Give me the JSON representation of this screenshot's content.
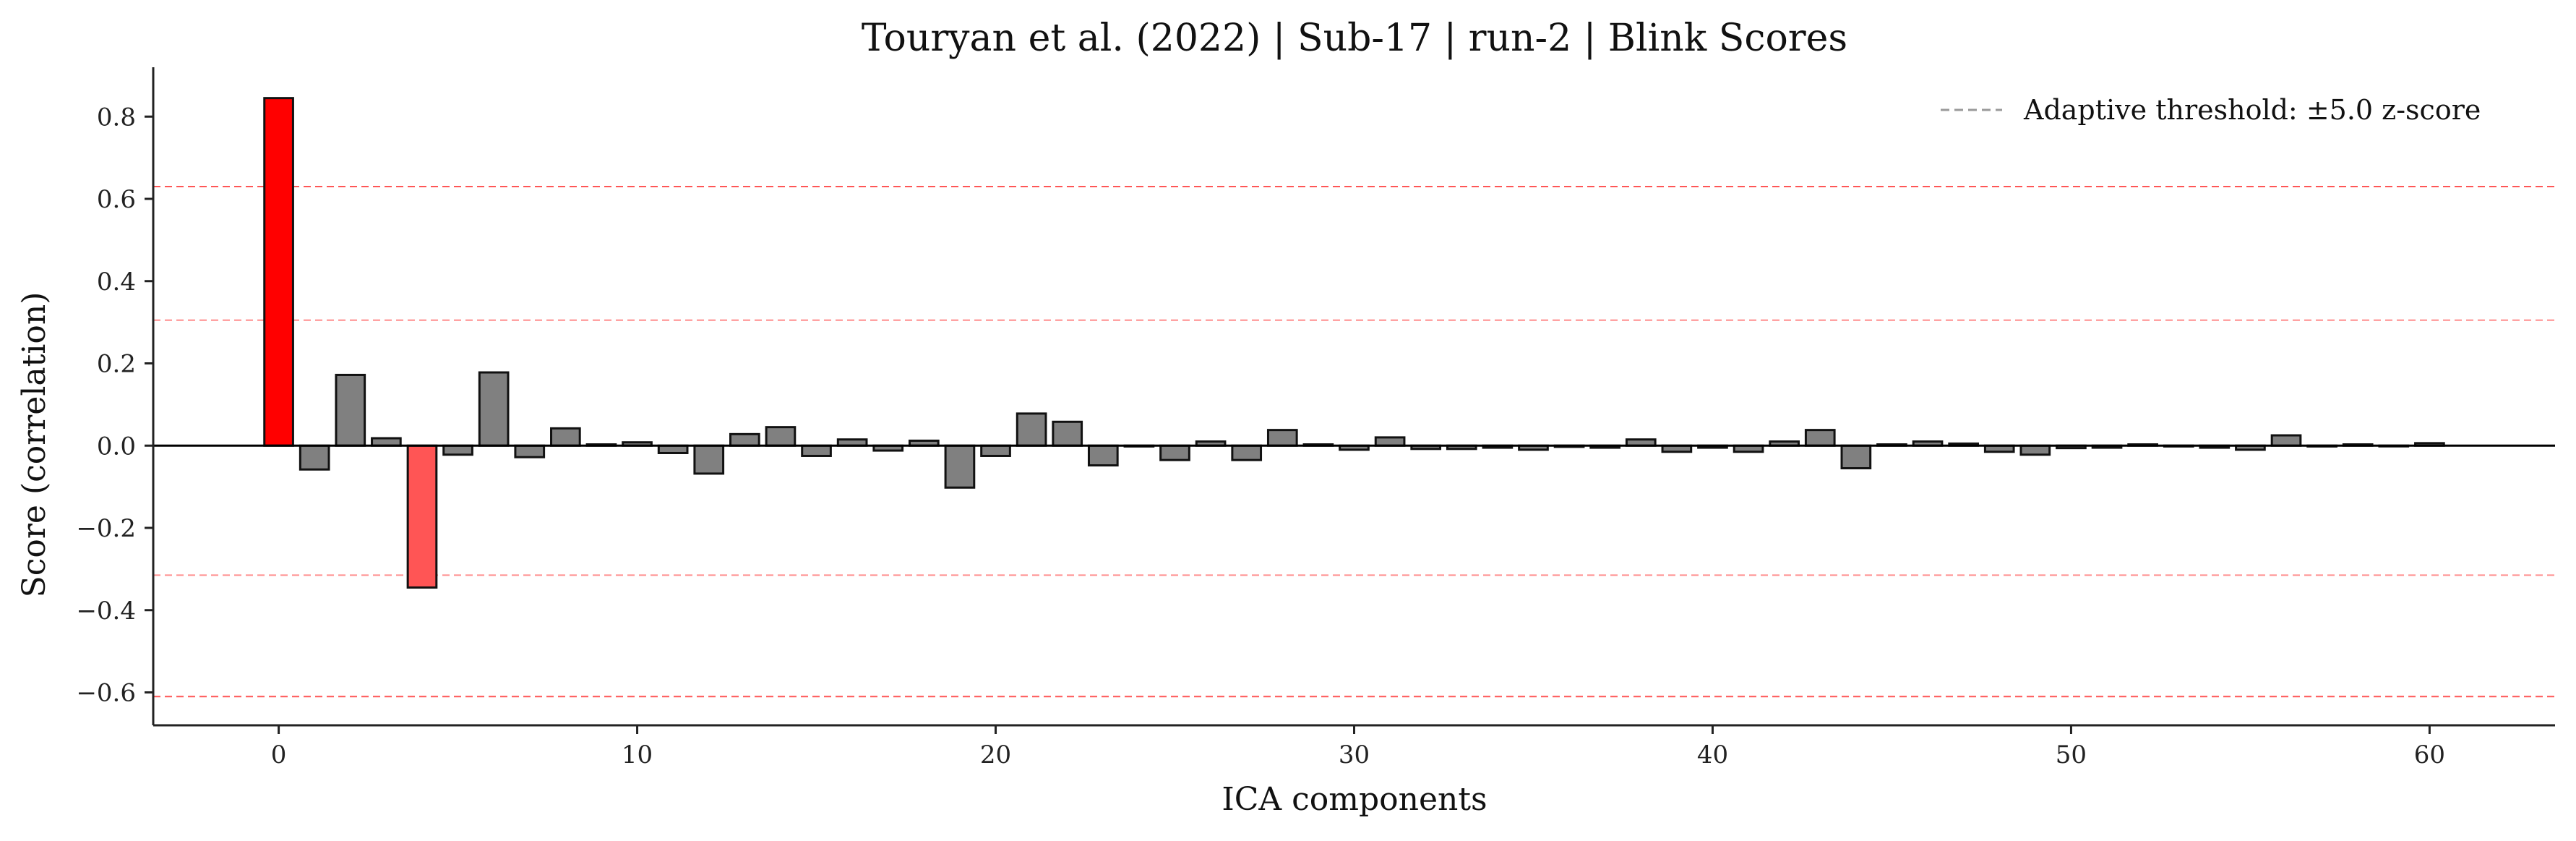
{
  "chart_data": {
    "type": "bar",
    "title": "Touryan et al. (2022) | Sub-17 | run-2 | Blink Scores",
    "xlabel": "ICA components",
    "ylabel": "Score (correlation)",
    "xlim": [
      -3.5,
      63.5
    ],
    "ylim": [
      -0.68,
      0.92
    ],
    "xticks": [
      0,
      10,
      20,
      30,
      40,
      50,
      60
    ],
    "yticks": [
      -0.6,
      -0.4,
      -0.2,
      0.0,
      0.2,
      0.4,
      0.6,
      0.8
    ],
    "xtick_labels": [
      "0",
      "10",
      "20",
      "30",
      "40",
      "50",
      "60"
    ],
    "ytick_labels": [
      "−0.6",
      "−0.4",
      "−0.2",
      "0.0",
      "0.2",
      "0.4",
      "0.6",
      "0.8"
    ],
    "grid": false,
    "legend": {
      "position": "top-right",
      "entries": [
        {
          "label": "Adaptive threshold: ±5.0 z-score",
          "style": "dashed",
          "color": "#999999"
        }
      ]
    },
    "threshold_lines": [
      0.63,
      0.305,
      -0.315,
      -0.61
    ],
    "x": [
      0,
      1,
      2,
      3,
      4,
      5,
      6,
      7,
      8,
      9,
      10,
      11,
      12,
      13,
      14,
      15,
      16,
      17,
      18,
      19,
      20,
      21,
      22,
      23,
      24,
      25,
      26,
      27,
      28,
      29,
      30,
      31,
      32,
      33,
      34,
      35,
      36,
      37,
      38,
      39,
      40,
      41,
      42,
      43,
      44,
      45,
      46,
      47,
      48,
      49,
      50,
      51,
      52,
      53,
      54,
      55,
      56,
      57,
      58,
      59,
      60
    ],
    "values": [
      0.845,
      -0.058,
      0.172,
      0.018,
      -0.345,
      -0.022,
      0.178,
      -0.028,
      0.042,
      0.003,
      0.008,
      -0.018,
      -0.068,
      0.028,
      0.045,
      -0.025,
      0.015,
      -0.012,
      0.012,
      -0.102,
      -0.025,
      0.078,
      0.058,
      -0.048,
      -0.002,
      -0.035,
      0.01,
      -0.035,
      0.038,
      0.003,
      -0.01,
      0.02,
      -0.008,
      -0.008,
      -0.005,
      -0.01,
      -0.003,
      -0.005,
      0.015,
      -0.015,
      -0.005,
      -0.015,
      0.01,
      0.038,
      -0.055,
      0.003,
      0.01,
      0.005,
      -0.015,
      -0.022,
      -0.006,
      -0.005,
      0.003,
      -0.002,
      -0.005,
      -0.01,
      0.025,
      -0.002,
      0.003,
      0.0,
      0.006
    ],
    "bar_colors": {
      "default": "#808080",
      "flagged_high": "#ff0000",
      "flagged_low": "#ff5555"
    },
    "flagged": {
      "0": "flagged_high",
      "4": "flagged_low"
    },
    "threshold_color": "#ff4444"
  }
}
